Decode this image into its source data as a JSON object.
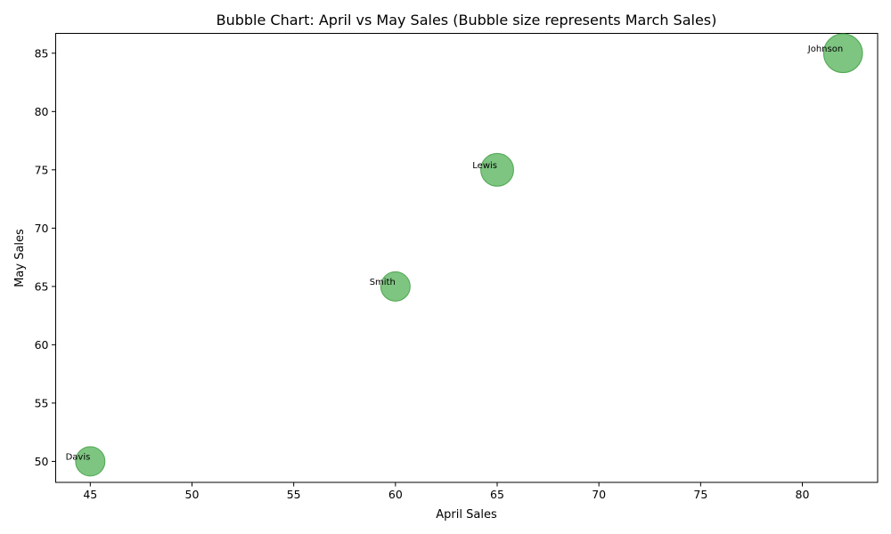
{
  "chart_data": {
    "type": "scatter",
    "title": "Bubble Chart: April vs May Sales (Bubble size represents March Sales)",
    "xlabel": "April Sales",
    "ylabel": "May Sales",
    "xlim": [
      43.3,
      83.7
    ],
    "ylim": [
      48.2,
      86.7
    ],
    "xticks": [
      45,
      50,
      55,
      60,
      65,
      70,
      75,
      80
    ],
    "yticks": [
      50,
      55,
      60,
      65,
      70,
      75,
      80,
      85
    ],
    "grid": false,
    "bubble_color": "#4caf50",
    "bubble_edge_color": "#3d9e40",
    "bubble_alpha": 0.72,
    "points": [
      {
        "label": "Davis",
        "x": 45,
        "y": 50,
        "size": 60
      },
      {
        "label": "Smith",
        "x": 60,
        "y": 65,
        "size": 60
      },
      {
        "label": "Lewis",
        "x": 65,
        "y": 75,
        "size": 75
      },
      {
        "label": "Johnson",
        "x": 82,
        "y": 85,
        "size": 105
      }
    ]
  }
}
